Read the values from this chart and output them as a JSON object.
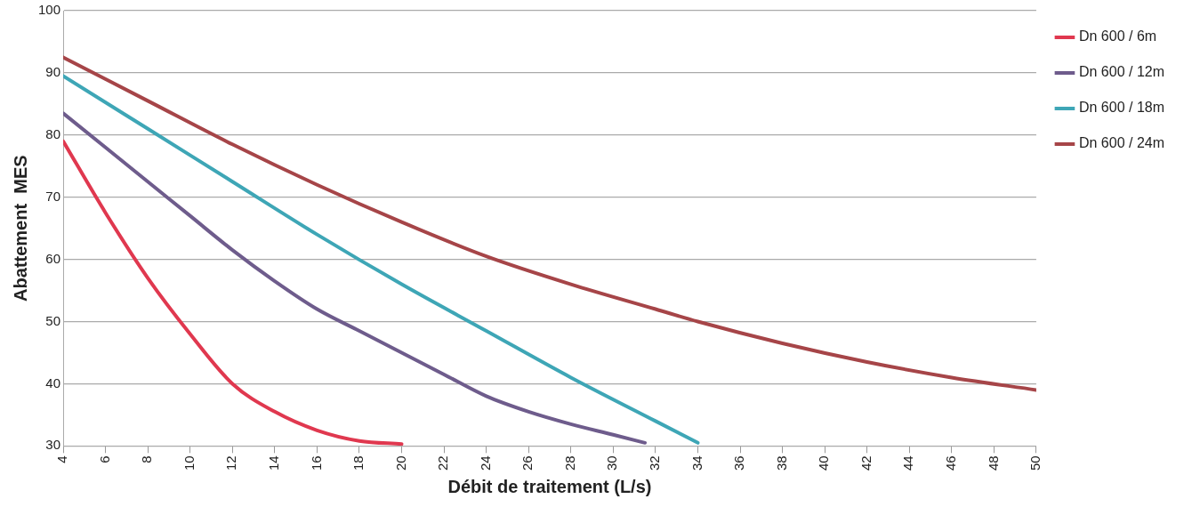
{
  "chart_data": {
    "type": "line",
    "xlabel": "Débit de traitement (L/s)",
    "ylabel": "Abattement  MES",
    "xlim": [
      4,
      50
    ],
    "xticks": [
      4,
      6,
      8,
      10,
      12,
      14,
      16,
      18,
      20,
      22,
      24,
      26,
      28,
      30,
      32,
      34,
      36,
      38,
      40,
      42,
      44,
      46,
      48,
      50
    ],
    "ylim": [
      30,
      100
    ],
    "yticks": [
      30,
      40,
      50,
      60,
      70,
      80,
      90,
      100
    ],
    "grid": "y",
    "legend": "right",
    "marker": "none",
    "line_style": "solid",
    "series": [
      {
        "name": "Dn 600 / 6m",
        "color": "#e0384f",
        "x": [
          4,
          6,
          8,
          10,
          12,
          14,
          16,
          18,
          20
        ],
        "values": [
          79,
          67.5,
          57,
          48,
          40,
          35.5,
          32.5,
          30.8,
          30.3
        ]
      },
      {
        "name": "Dn 600 / 12m",
        "color": "#6e5c8c",
        "x": [
          4,
          6,
          8,
          10,
          12,
          14,
          16,
          18,
          20,
          22,
          24,
          26,
          28,
          30,
          31.5
        ],
        "values": [
          83.5,
          78,
          72.5,
          67,
          61.5,
          56.5,
          52,
          48.5,
          45,
          41.5,
          38,
          35.5,
          33.5,
          31.8,
          30.5
        ]
      },
      {
        "name": "Dn 600 / 18m",
        "color": "#3ea6b6",
        "x": [
          4,
          8,
          12,
          16,
          20,
          24,
          28,
          32,
          34
        ],
        "values": [
          89.5,
          81,
          72.5,
          64,
          56,
          48.5,
          41,
          34,
          30.5
        ]
      },
      {
        "name": "Dn 600 / 24m",
        "color": "#a64548",
        "x": [
          4,
          8,
          12,
          16,
          20,
          24,
          28,
          32,
          34,
          38,
          42,
          46,
          50
        ],
        "values": [
          92.5,
          85.5,
          78.5,
          72,
          66,
          60.5,
          56,
          52,
          50,
          46.5,
          43.5,
          41,
          39
        ]
      }
    ]
  }
}
